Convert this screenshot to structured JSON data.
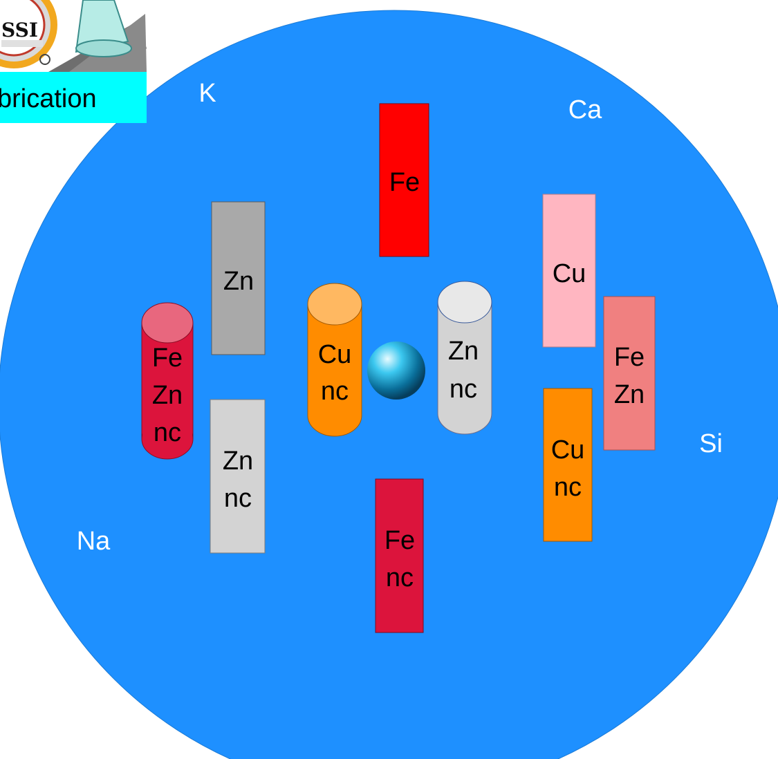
{
  "colors": {
    "disk": "#1e90ff",
    "background": "#ffffff",
    "banner": "#00ffff",
    "red": "#ff0000",
    "crimson": "#dc143c",
    "gray": "#a9a9a9",
    "light_gray": "#d3d3d3",
    "pink": "#ffb6c1",
    "salmon": "#f08080",
    "orange": "#ff8c00",
    "cylinder_pink_top": "#e8677e",
    "cylinder_orange_top": "#ffb861",
    "cylinder_gray_top": "#e8e8e8",
    "sphere": "#1fb5e8",
    "outer_label": "#ffffff"
  },
  "logo": {
    "text": "SSI",
    "icon": "ssi-logo-icon"
  },
  "banner": {
    "text": "brication"
  },
  "outer_labels": {
    "k": "K",
    "ca": "Ca",
    "si": "Si",
    "na": "Na"
  },
  "blocks": {
    "fe_top": {
      "lines": [
        "Fe"
      ]
    },
    "zn_left": {
      "lines": [
        "Zn"
      ]
    },
    "zn_nc_left": {
      "lines": [
        "Zn",
        "nc"
      ]
    },
    "fe_nc_bottom": {
      "lines": [
        "Fe",
        "nc"
      ]
    },
    "cu_right": {
      "lines": [
        "Cu"
      ]
    },
    "fe_zn_right": {
      "lines": [
        "Fe",
        "Zn"
      ]
    },
    "cu_nc_right": {
      "lines": [
        "Cu",
        "nc"
      ]
    }
  },
  "cylinders": {
    "fe_zn_nc": {
      "lines": [
        "Fe",
        "Zn",
        "nc"
      ]
    },
    "cu_nc_center": {
      "lines": [
        "Cu",
        "nc"
      ]
    },
    "zn_nc_center": {
      "lines": [
        "Zn",
        "nc"
      ]
    }
  },
  "center": {
    "icon": "sphere-icon"
  }
}
